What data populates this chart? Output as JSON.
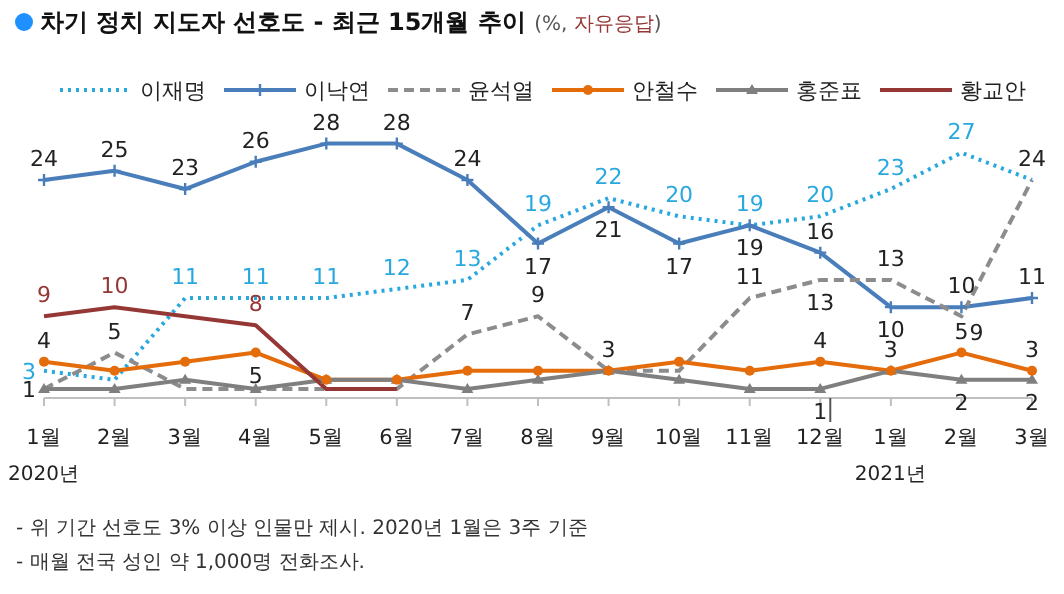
{
  "chart_data": {
    "type": "line",
    "title": "차기 정치 지도자 선호도 - 최근 15개월 추이 (%, 자유응답)",
    "categories": [
      "1월",
      "2월",
      "3월",
      "4월",
      "5월",
      "6월",
      "7월",
      "8월",
      "9월",
      "10월",
      "11월",
      "12월",
      "1월",
      "2월",
      "3월"
    ],
    "legend": "top",
    "grid": false,
    "series": [
      {
        "name": "이재명",
        "color": "#29a8e0",
        "line_style": "dotted",
        "marker": "none",
        "values": [
          3,
          2,
          11,
          11,
          11,
          12,
          13,
          19,
          22,
          20,
          19,
          20,
          23,
          27,
          24
        ],
        "value_labels": [
          "3",
          null,
          "11",
          "11",
          "11",
          "12",
          "13",
          "19",
          "22",
          "20",
          "19",
          "20",
          "23",
          "27",
          null
        ]
      },
      {
        "name": "이낙연",
        "color": "#4a7ebb",
        "line_style": "solid",
        "marker": "cross",
        "values": [
          24,
          25,
          23,
          26,
          28,
          28,
          24,
          17,
          21,
          17,
          19,
          16,
          10,
          10,
          11
        ],
        "value_labels": [
          "24",
          "25",
          "23",
          "26",
          "28",
          "28",
          "24",
          "17",
          "21",
          "17",
          "19",
          "16",
          "10",
          "10",
          "11"
        ]
      },
      {
        "name": "윤석열",
        "color": "#8c8c8c",
        "line_style": "dashed",
        "marker": "none",
        "values": [
          1,
          5,
          1,
          1,
          1,
          1,
          7,
          9,
          3,
          3,
          11,
          13,
          13,
          9,
          24
        ],
        "value_labels": [
          null,
          "5",
          null,
          null,
          null,
          null,
          "7",
          "9",
          "3",
          null,
          "11",
          "13",
          "13",
          "9",
          "24"
        ]
      },
      {
        "name": "안철수",
        "color": "#e46c0a",
        "line_style": "solid",
        "marker": "circle",
        "values": [
          4,
          3,
          4,
          5,
          2,
          2,
          3,
          3,
          3,
          4,
          3,
          4,
          3,
          5,
          3
        ],
        "value_labels": [
          "4",
          null,
          null,
          "5",
          null,
          null,
          null,
          null,
          null,
          null,
          null,
          "4",
          null,
          "5",
          "3"
        ]
      },
      {
        "name": "홍준표",
        "color": "#7f7f7f",
        "line_style": "solid",
        "marker": "triangle",
        "values": [
          1,
          1,
          2,
          1,
          2,
          2,
          1,
          2,
          3,
          2,
          1,
          1,
          3,
          2,
          2
        ],
        "value_labels": [
          "1",
          null,
          null,
          null,
          null,
          null,
          null,
          null,
          null,
          null,
          null,
          "1",
          "3",
          "2",
          "2"
        ]
      },
      {
        "name": "황교안",
        "color": "#953735",
        "line_style": "solid",
        "marker": "none",
        "values": [
          9,
          10,
          9,
          8,
          1,
          1,
          null,
          null,
          null,
          null,
          null,
          null,
          null,
          null,
          null
        ],
        "value_labels": [
          "9",
          "10",
          null,
          "8",
          null,
          null,
          null,
          null,
          null,
          null,
          null,
          null,
          null,
          null,
          null
        ]
      }
    ],
    "annotations": [
      "2020년",
      "2021년",
      "- 위 기간 선호도 3% 이상 인물만 제시. 2020년 1월은 3주 기준",
      "- 매월 전국 성인 약 1,000명 전화조사."
    ]
  }
}
